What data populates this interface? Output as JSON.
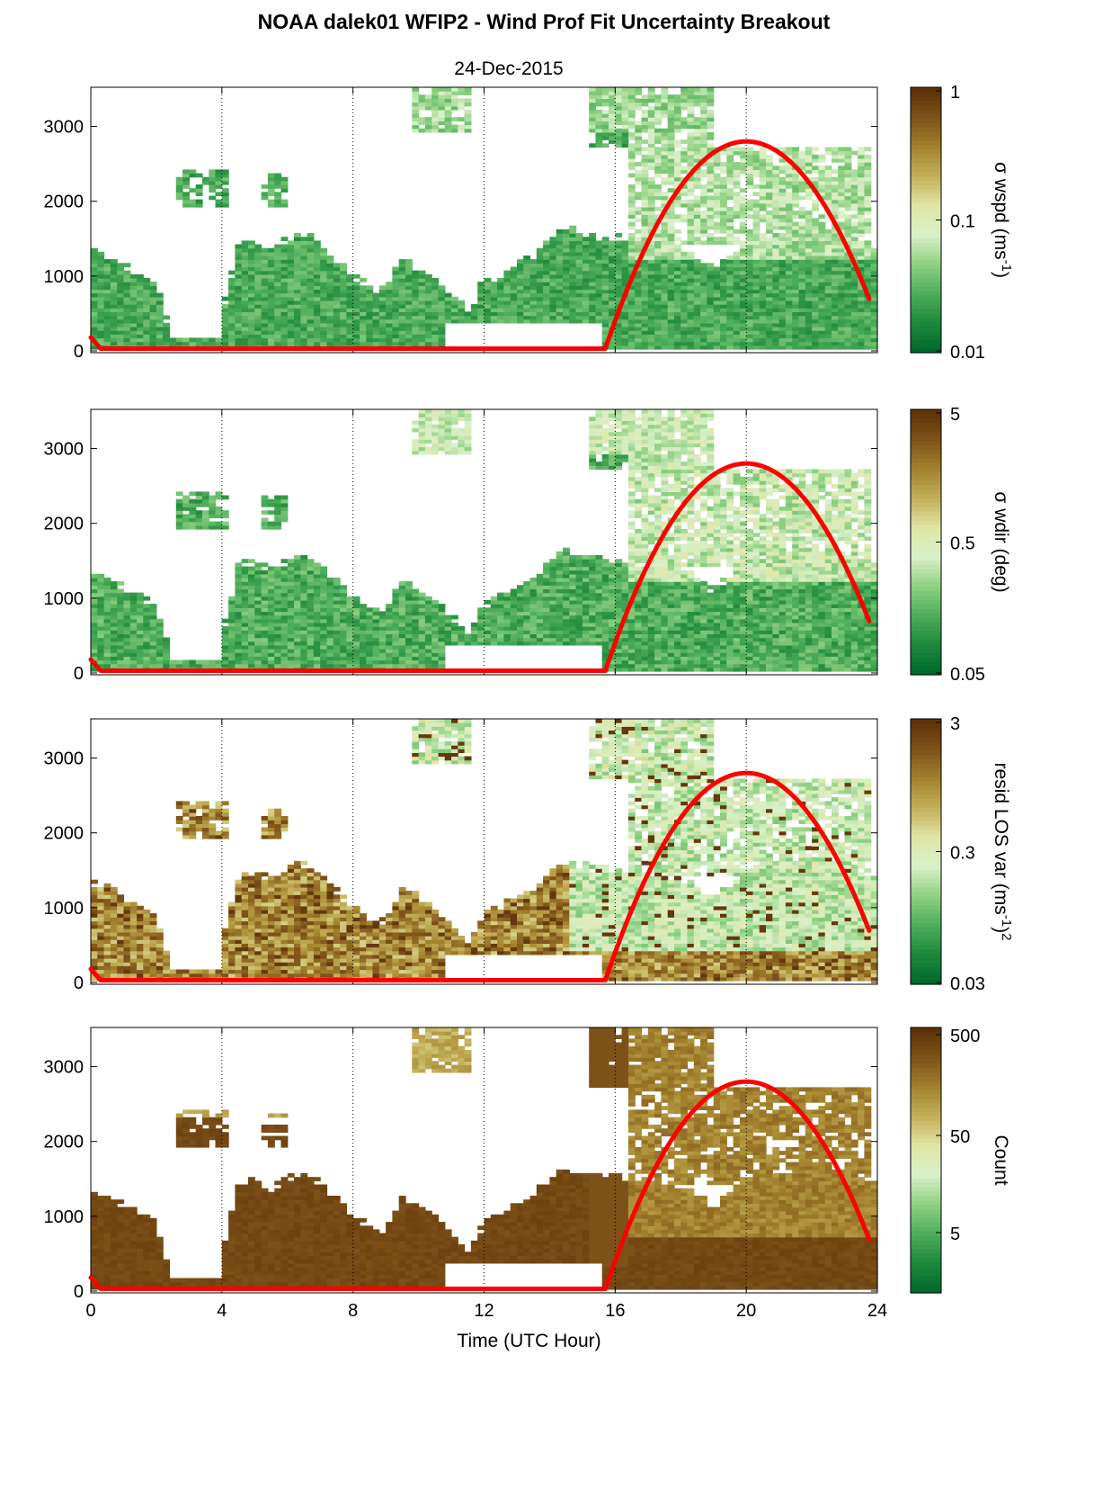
{
  "title": "NOAA dalek01 WFIP2 - Wind Prof Fit Uncertainty Breakout",
  "subtitle": "24-Dec-2015",
  "colors": {
    "sun_curve": "#ff0000",
    "cmap": [
      "#006a2c",
      "#1f8a3c",
      "#4eae5c",
      "#90d183",
      "#d9f0c8",
      "#dfe6a6",
      "#c4b05a",
      "#a4832e",
      "#80541a",
      "#5e3209"
    ]
  },
  "chart_data": [
    {
      "type": "heatmap",
      "title": "",
      "xlabel": "",
      "ylabel": "",
      "xlim": [
        0,
        24
      ],
      "ylim": [
        0,
        3500
      ],
      "xticks": [
        "0",
        "4",
        "8",
        "12",
        "16",
        "20",
        "24"
      ],
      "yticks": [
        "0",
        "1000",
        "2000",
        "3000"
      ],
      "colorbar": {
        "label": "σ wspd (ms",
        "label_sup": "-1",
        "label_end": ")",
        "ticks": [
          "1",
          "0.1",
          "0.01"
        ],
        "scale": "log"
      },
      "sun_elevation_curve": {
        "x": [
          0,
          0.3,
          15.7,
          16,
          17,
          18,
          19,
          20,
          21,
          22,
          23,
          23.8
        ],
        "y": [
          180,
          30,
          30,
          120,
          1100,
          2050,
          2600,
          2800,
          2650,
          2150,
          1450,
          520
        ]
      }
    },
    {
      "type": "heatmap",
      "title": "",
      "xlabel": "",
      "ylabel": "",
      "xlim": [
        0,
        24
      ],
      "ylim": [
        0,
        3500
      ],
      "xticks": [
        "0",
        "4",
        "8",
        "12",
        "16",
        "20",
        "24"
      ],
      "yticks": [
        "0",
        "1000",
        "2000",
        "3000"
      ],
      "colorbar": {
        "label": "σ wdir (deg)",
        "ticks": [
          "5",
          "0.5",
          "0.05"
        ],
        "scale": "log"
      },
      "sun_elevation_curve": {
        "x": [
          0,
          0.3,
          15.7,
          16,
          17,
          18,
          19,
          20,
          21,
          22,
          23,
          23.8
        ],
        "y": [
          180,
          30,
          30,
          120,
          1100,
          2050,
          2600,
          2800,
          2650,
          2150,
          1450,
          520
        ]
      }
    },
    {
      "type": "heatmap",
      "title": "",
      "xlabel": "",
      "ylabel": "",
      "xlim": [
        0,
        24
      ],
      "ylim": [
        0,
        3500
      ],
      "xticks": [
        "0",
        "4",
        "8",
        "12",
        "16",
        "20",
        "24"
      ],
      "yticks": [
        "0",
        "1000",
        "2000",
        "3000"
      ],
      "colorbar": {
        "label": "resid LOS var (ms",
        "label_sup": "-1",
        "label_end": ")",
        "label_sup2": "2",
        "ticks": [
          "3",
          "0.3",
          "0.03"
        ],
        "scale": "log"
      },
      "sun_elevation_curve": {
        "x": [
          0,
          0.3,
          15.7,
          16,
          17,
          18,
          19,
          20,
          21,
          22,
          23,
          23.8
        ],
        "y": [
          180,
          30,
          30,
          120,
          1100,
          2050,
          2600,
          2800,
          2650,
          2150,
          1450,
          520
        ]
      }
    },
    {
      "type": "heatmap",
      "title": "",
      "xlabel": "Time (UTC Hour)",
      "ylabel": "",
      "xlim": [
        0,
        24
      ],
      "ylim": [
        0,
        3500
      ],
      "xticks": [
        "0",
        "4",
        "8",
        "12",
        "16",
        "20",
        "24"
      ],
      "yticks": [
        "0",
        "1000",
        "2000",
        "3000"
      ],
      "colorbar": {
        "label": "Count",
        "ticks": [
          "500",
          "50",
          "5"
        ],
        "scale": "log"
      },
      "sun_elevation_curve": {
        "x": [
          0,
          0.3,
          15.7,
          16,
          17,
          18,
          19,
          20,
          21,
          22,
          23,
          23.8
        ],
        "y": [
          180,
          30,
          30,
          120,
          1100,
          2050,
          2600,
          2800,
          2650,
          2150,
          1450,
          520
        ]
      }
    }
  ]
}
